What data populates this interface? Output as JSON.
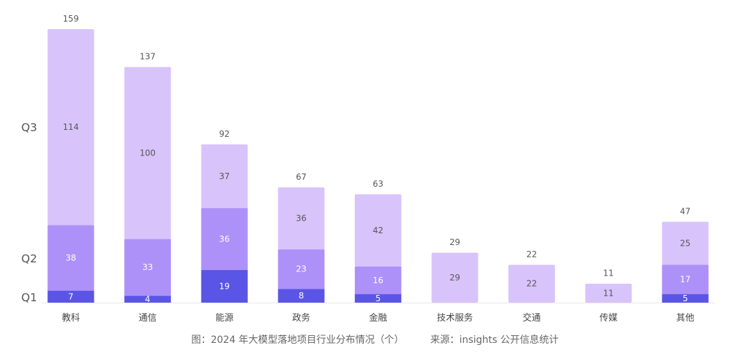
{
  "chart_data": {
    "type": "bar",
    "stacked": true,
    "categories": [
      "教科",
      "通信",
      "能源",
      "政务",
      "金融",
      "技术服务",
      "交通",
      "传媒",
      "其他"
    ],
    "series": [
      {
        "name": "Q1",
        "values": [
          7,
          4,
          19,
          8,
          5,
          0,
          0,
          0,
          5
        ],
        "color": "#5b55e6"
      },
      {
        "name": "Q2",
        "values": [
          38,
          33,
          36,
          23,
          16,
          0,
          0,
          0,
          17
        ],
        "color": "#ad91f8"
      },
      {
        "name": "Q3",
        "values": [
          114,
          100,
          37,
          36,
          42,
          29,
          22,
          11,
          25
        ],
        "color": "#d8c4fb"
      }
    ],
    "totals": [
      159,
      137,
      92,
      67,
      63,
      29,
      22,
      11,
      47
    ],
    "ylim": [
      0,
      170
    ],
    "grid": false,
    "legend_position": "left"
  },
  "caption": {
    "figure": "图：2024 年大模型落地项目行业分布情况（个）",
    "source": "来源：insights 公开信息统计"
  }
}
